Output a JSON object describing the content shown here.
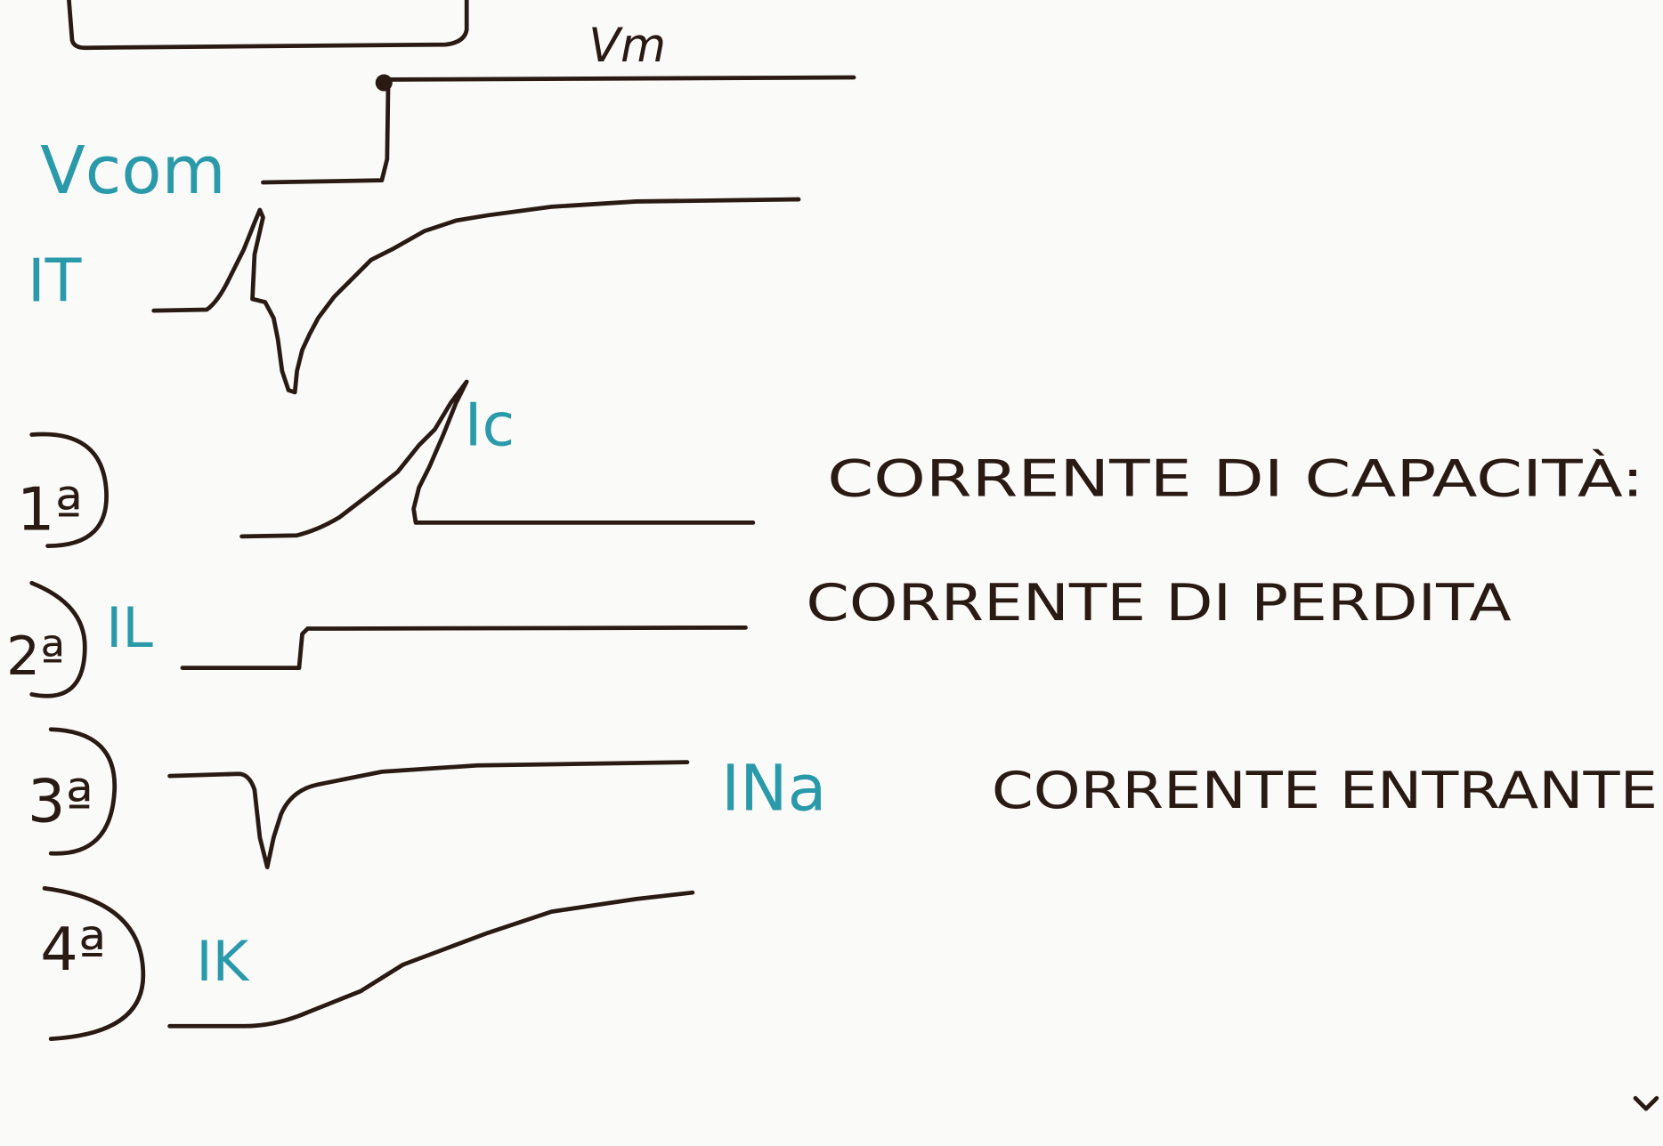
{
  "labels": {
    "vm": "Vm",
    "vcom": "Vcom",
    "it": "IT",
    "ic": "Ic",
    "il": "IL",
    "ina": "INa",
    "ik": "IK"
  },
  "steps": [
    {
      "number": "1ª",
      "description": "CORRENTE DI CAPACITÀ:"
    },
    {
      "number": "2ª",
      "description": "CORRENTE DI PERDITA"
    },
    {
      "number": "3ª",
      "description": "CORRENTE ENTRANTE"
    },
    {
      "number": "4ª"
    }
  ]
}
